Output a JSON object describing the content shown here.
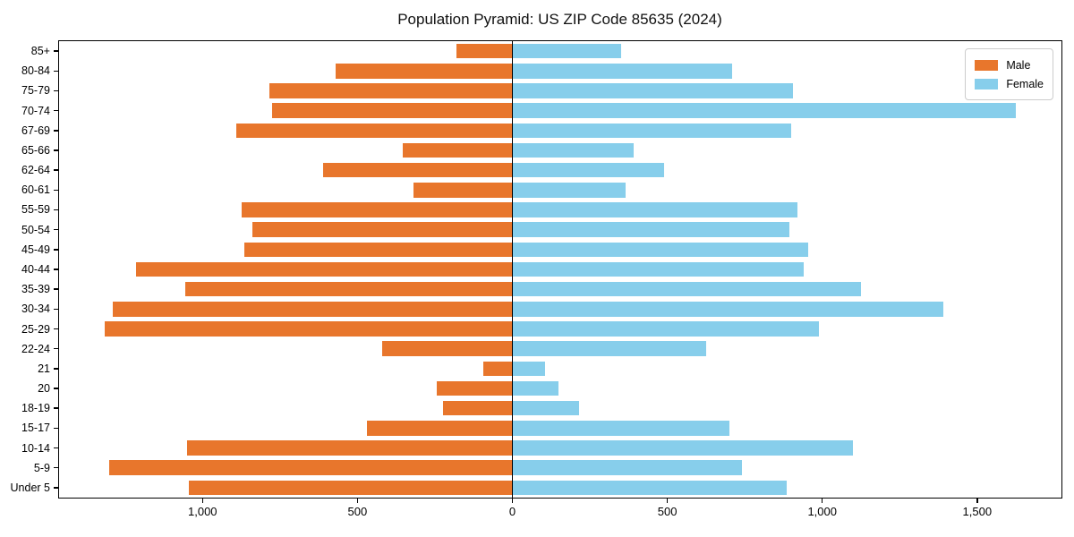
{
  "title": "Population Pyramid: US ZIP Code 85635 (2024)",
  "legend": {
    "male": "Male",
    "female": "Female",
    "position": "upper-right"
  },
  "colors": {
    "male": "#e8762c",
    "female": "#87ceeb",
    "axis": "#000000",
    "legend_border": "#cccccc",
    "background": "#ffffff"
  },
  "chart_data": {
    "type": "bar",
    "variant": "population-pyramid",
    "orientation": "horizontal",
    "title": "Population Pyramid: US ZIP Code 85635 (2024)",
    "categories": [
      "85+",
      "80-84",
      "75-79",
      "70-74",
      "67-69",
      "65-66",
      "62-64",
      "60-61",
      "55-59",
      "50-54",
      "45-49",
      "40-44",
      "35-39",
      "30-34",
      "25-29",
      "22-24",
      "21",
      "20",
      "18-19",
      "15-17",
      "10-14",
      "5-9",
      "Under 5"
    ],
    "series": [
      {
        "name": "Male",
        "direction": "left",
        "color": "#e8762c",
        "values": [
          180,
          570,
          785,
          775,
          890,
          355,
          610,
          320,
          875,
          840,
          865,
          1215,
          1055,
          1290,
          1315,
          420,
          95,
          245,
          225,
          470,
          1050,
          1300,
          1045
        ]
      },
      {
        "name": "Female",
        "direction": "right",
        "color": "#87ceeb",
        "values": [
          350,
          710,
          905,
          1625,
          900,
          390,
          490,
          365,
          920,
          895,
          955,
          940,
          1125,
          1390,
          990,
          625,
          105,
          150,
          215,
          700,
          1100,
          740,
          885
        ]
      }
    ],
    "xlim": [
      -1463,
      1772
    ],
    "xticks": {
      "values": [
        -1000,
        -500,
        0,
        500,
        1000,
        1500
      ],
      "labels": [
        "1,000",
        "500",
        "0",
        "500",
        "1,000",
        "1,500"
      ]
    },
    "xlabel": "",
    "ylabel": "",
    "grid": false,
    "zero_axis_line": true,
    "legend_position": "upper right"
  }
}
